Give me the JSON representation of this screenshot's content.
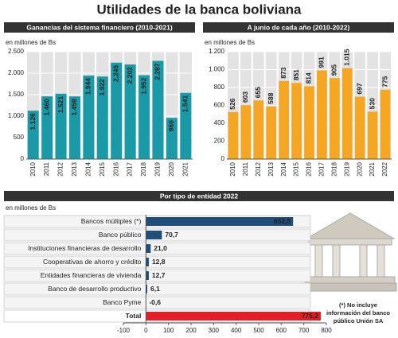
{
  "page_title": "Utilidades de la banca boliviana",
  "note": [
    "(*) No incluye",
    "información del banco",
    "público Unión SA"
  ],
  "chart_data": [
    {
      "type": "bar",
      "title": "Ganancias del sistema financiero (2010-2021)",
      "subtitle": "en millones de Bs",
      "categories": [
        "2010",
        "2011",
        "2012",
        "2013",
        "2014",
        "2015",
        "2016",
        "2017",
        "2018",
        "2019",
        "2020",
        "2021"
      ],
      "values": [
        1126,
        1460,
        1521,
        1459,
        1944,
        1922,
        2245,
        2202,
        1952,
        2287,
        960,
        1541
      ],
      "value_labels": [
        "1.126",
        "1.460",
        "1.521",
        "1.459",
        "1.944",
        "1.922",
        "2.245",
        "2.202",
        "1.952",
        "2.287",
        "960",
        "1.541"
      ],
      "color": "#1a9aa6",
      "ylim": [
        0,
        2500
      ],
      "yticks": [
        0,
        500,
        {
          "value": 1000,
          "label": "1.000"
        },
        {
          "value": 1500,
          "label": "1.500"
        },
        {
          "value": 2000,
          "label": "2.000"
        },
        {
          "value": 2500,
          "label": "2.500"
        }
      ],
      "grid": true
    },
    {
      "type": "bar",
      "title": "A junio de cada año (2010-2022)",
      "subtitle": "en millones de Bs",
      "categories": [
        "2010",
        "2011",
        "2012",
        "2013",
        "2014",
        "2015",
        "2016",
        "2017",
        "2018",
        "2019",
        "2020",
        "2021",
        "2022"
      ],
      "values": [
        526,
        603,
        655,
        588,
        873,
        851,
        814,
        991,
        905,
        1015,
        697,
        530,
        775
      ],
      "value_labels": [
        "526",
        "603",
        "655",
        "588",
        "873",
        "851",
        "814",
        "991",
        "905",
        "1.015",
        "697",
        "530",
        "775"
      ],
      "color": "#f5a623",
      "ylim": [
        0,
        1200
      ],
      "yticks": [
        0,
        200,
        400,
        600,
        800,
        {
          "value": 1000,
          "label": "1.000"
        },
        {
          "value": 1200,
          "label": "1.200"
        }
      ],
      "grid": true
    },
    {
      "type": "barh",
      "title": "Por tipo de entidad 2022",
      "subtitle": "en millones de Bs",
      "categories": [
        "Bancos múltiples (*)",
        "Banco público",
        "Instituciones financieras de desarrollo",
        "Cooperativas de ahorro y crédito",
        "Entidades financieras de vivienda",
        "Banco de desarrollo productivo",
        "Banco Pyme",
        "Total"
      ],
      "values": [
        652.5,
        70.7,
        21.0,
        12.8,
        12.7,
        6.1,
        -0.6,
        775.2
      ],
      "value_labels": [
        "652,5",
        "70,7",
        "21,0",
        "12,8",
        "12,7",
        "6,1",
        "-0,6",
        "775,2"
      ],
      "colors": [
        "#1f4e79",
        "#1f4e79",
        "#1f4e79",
        "#1f4e79",
        "#1f4e79",
        "#1f4e79",
        "#1f4e79",
        "#e41e26"
      ],
      "xlim": [
        -100,
        800
      ],
      "xticks": [
        -100,
        0,
        100,
        200,
        300,
        400,
        500,
        600,
        700,
        800
      ]
    }
  ]
}
